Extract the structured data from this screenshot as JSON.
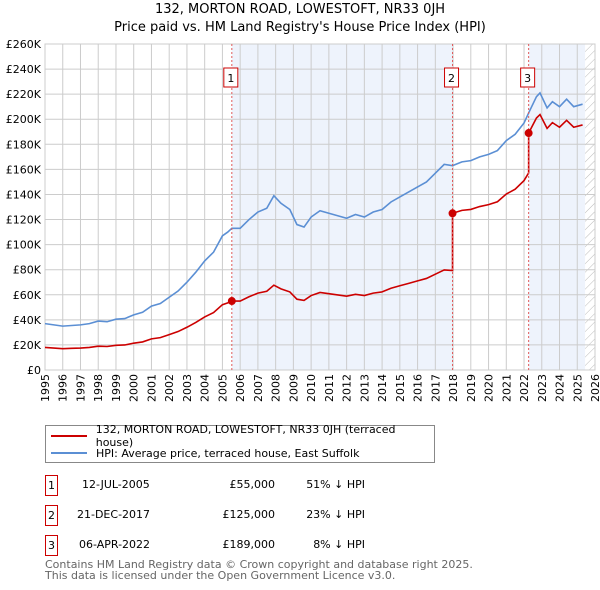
{
  "title_line1": "132, MORTON ROAD, LOWESTOFT, NR33 0JH",
  "title_line2": "Price paid vs. HM Land Registry's House Price Index (HPI)",
  "chart_data": {
    "type": "line",
    "title": "132, MORTON ROAD, LOWESTOFT, NR33 0JH — Price paid vs. HM Land Registry's House Price Index (HPI)",
    "xlim": [
      1995,
      2026
    ],
    "ylim": [
      0,
      260000
    ],
    "x_ticks": [
      "1995",
      "1996",
      "1997",
      "1998",
      "1999",
      "2000",
      "2001",
      "2002",
      "2003",
      "2004",
      "2005",
      "2006",
      "2007",
      "2008",
      "2009",
      "2010",
      "2011",
      "2012",
      "2013",
      "2014",
      "2015",
      "2016",
      "2017",
      "2018",
      "2019",
      "2020",
      "2021",
      "2022",
      "2023",
      "2024",
      "2025",
      "2026"
    ],
    "y_ticks": [
      {
        "v": 0,
        "label": "£0"
      },
      {
        "v": 20000,
        "label": "£20K"
      },
      {
        "v": 40000,
        "label": "£40K"
      },
      {
        "v": 60000,
        "label": "£60K"
      },
      {
        "v": 80000,
        "label": "£80K"
      },
      {
        "v": 100000,
        "label": "£100K"
      },
      {
        "v": 120000,
        "label": "£120K"
      },
      {
        "v": 140000,
        "label": "£140K"
      },
      {
        "v": 160000,
        "label": "£160K"
      },
      {
        "v": 180000,
        "label": "£180K"
      },
      {
        "v": 200000,
        "label": "£200K"
      },
      {
        "v": 220000,
        "label": "£220K"
      },
      {
        "v": 240000,
        "label": "£240K"
      },
      {
        "v": 260000,
        "label": "£260K"
      }
    ],
    "grid": true,
    "hatch_from": 2025.44,
    "series": [
      {
        "name": "HPI: Average price, terraced house, East Suffolk",
        "color": "#5b8fd4",
        "points": [
          [
            1995,
            37
          ],
          [
            1995.5,
            36
          ],
          [
            1996,
            35
          ],
          [
            1996.5,
            35.5
          ],
          [
            1997,
            36
          ],
          [
            1997.5,
            37
          ],
          [
            1998,
            39
          ],
          [
            1998.5,
            38.5
          ],
          [
            1999,
            40.5
          ],
          [
            1999.5,
            41
          ],
          [
            2000,
            44
          ],
          [
            2000.5,
            46
          ],
          [
            2001,
            51
          ],
          [
            2001.5,
            53
          ],
          [
            2002,
            58
          ],
          [
            2002.5,
            63
          ],
          [
            2003,
            70
          ],
          [
            2003.5,
            78
          ],
          [
            2004,
            87
          ],
          [
            2004.5,
            94
          ],
          [
            2005,
            107
          ],
          [
            2005.3,
            110
          ],
          [
            2005.53,
            113
          ],
          [
            2006,
            113
          ],
          [
            2006.5,
            120
          ],
          [
            2007,
            126
          ],
          [
            2007.5,
            129
          ],
          [
            2007.9,
            139
          ],
          [
            2008.3,
            133
          ],
          [
            2008.8,
            128
          ],
          [
            2009.2,
            116
          ],
          [
            2009.6,
            114
          ],
          [
            2010,
            122
          ],
          [
            2010.5,
            127
          ],
          [
            2011,
            125
          ],
          [
            2011.5,
            123
          ],
          [
            2012,
            121
          ],
          [
            2012.5,
            124
          ],
          [
            2013,
            122
          ],
          [
            2013.5,
            126
          ],
          [
            2014,
            128
          ],
          [
            2014.5,
            134
          ],
          [
            2015,
            138
          ],
          [
            2015.5,
            142
          ],
          [
            2016,
            146
          ],
          [
            2016.5,
            150
          ],
          [
            2017,
            157
          ],
          [
            2017.5,
            164
          ],
          [
            2017.97,
            163
          ],
          [
            2018.5,
            166
          ],
          [
            2019,
            167
          ],
          [
            2019.5,
            170
          ],
          [
            2020,
            172
          ],
          [
            2020.5,
            175
          ],
          [
            2021,
            183
          ],
          [
            2021.5,
            188
          ],
          [
            2022,
            197
          ],
          [
            2022.26,
            205
          ],
          [
            2022.7,
            218
          ],
          [
            2022.9,
            221
          ],
          [
            2023.3,
            209
          ],
          [
            2023.6,
            214
          ],
          [
            2024,
            210
          ],
          [
            2024.4,
            216
          ],
          [
            2024.8,
            210
          ],
          [
            2025.3,
            212
          ]
        ],
        "unit": "thousand GBP"
      },
      {
        "name": "132, MORTON ROAD, LOWESTOFT, NR33 0JH (terraced house)",
        "color": "#cc0000",
        "derived": "HPI scaled to each sale price"
      }
    ],
    "sales": [
      {
        "n": "1",
        "x": 2005.53,
        "price": 55
      },
      {
        "n": "2",
        "x": 2017.97,
        "price": 125
      },
      {
        "n": "3",
        "x": 2022.26,
        "price": 189
      }
    ]
  },
  "legend": {
    "red": "132, MORTON ROAD, LOWESTOFT, NR33 0JH (terraced house)",
    "blue": "HPI: Average price, terraced house, East Suffolk"
  },
  "transactions": [
    {
      "n": "1",
      "date": "12-JUL-2005",
      "price": "£55,000",
      "hpi": "51% ↓ HPI"
    },
    {
      "n": "2",
      "date": "21-DEC-2017",
      "price": "£125,000",
      "hpi": "23% ↓ HPI"
    },
    {
      "n": "3",
      "date": "06-APR-2022",
      "price": "£189,000",
      "hpi": "8% ↓ HPI"
    }
  ],
  "footer": {
    "line1": "Contains HM Land Registry data © Crown copyright and database right 2025.",
    "line2": "This data is licensed under the Open Government Licence v3.0."
  }
}
